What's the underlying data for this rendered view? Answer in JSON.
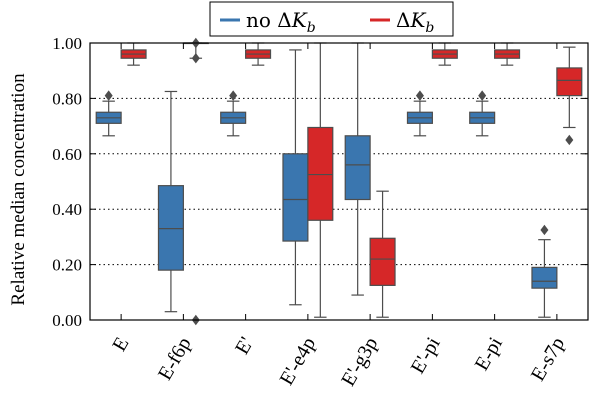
{
  "chart_data": {
    "type": "box",
    "ylabel": "Relative median concentration",
    "ylim": [
      0,
      1
    ],
    "yticks": [
      "0.00",
      "0.20",
      "0.40",
      "0.60",
      "0.80",
      "1.00"
    ],
    "grid": "horizontal dotted",
    "categories": [
      "E",
      "E-f6p",
      "E'",
      "E'-e4p",
      "E'-g3p",
      "E'-pi",
      "E-pi",
      "E-s7p"
    ],
    "legend": {
      "placement": "top-center",
      "entries": [
        {
          "prefix": "no ",
          "symbol": "ΔK",
          "subscript": "b"
        },
        {
          "prefix": "",
          "symbol": "ΔK",
          "subscript": "b"
        }
      ]
    },
    "series": [
      {
        "color": "#3a76af",
        "boxes": [
          {
            "whislo": 0.665,
            "q1": 0.71,
            "med": 0.73,
            "q3": 0.75,
            "whishi": 0.79,
            "fliers": [
              0.81
            ]
          },
          {
            "whislo": 0.03,
            "q1": 0.18,
            "med": 0.33,
            "q3": 0.485,
            "whishi": 0.825,
            "fliers": []
          },
          {
            "whislo": 0.665,
            "q1": 0.71,
            "med": 0.73,
            "q3": 0.75,
            "whishi": 0.79,
            "fliers": [
              0.81
            ]
          },
          {
            "whislo": 0.055,
            "q1": 0.285,
            "med": 0.435,
            "q3": 0.6,
            "whishi": 0.975,
            "fliers": []
          },
          {
            "whislo": 0.09,
            "q1": 0.435,
            "med": 0.56,
            "q3": 0.665,
            "whishi": 1.0,
            "fliers": []
          },
          {
            "whislo": 0.665,
            "q1": 0.71,
            "med": 0.73,
            "q3": 0.75,
            "whishi": 0.79,
            "fliers": [
              0.81
            ]
          },
          {
            "whislo": 0.665,
            "q1": 0.71,
            "med": 0.73,
            "q3": 0.75,
            "whishi": 0.79,
            "fliers": [
              0.81
            ]
          },
          {
            "whislo": 0.01,
            "q1": 0.115,
            "med": 0.14,
            "q3": 0.19,
            "whishi": 0.29,
            "fliers": [
              0.325
            ]
          }
        ]
      },
      {
        "color": "#d62728",
        "boxes": [
          {
            "whislo": 0.92,
            "q1": 0.945,
            "med": 0.96,
            "q3": 0.975,
            "whishi": 1.0,
            "fliers": []
          },
          {
            "whislo": 0.945,
            "q1": 1.0,
            "med": 1.0,
            "q3": 1.0,
            "whishi": 1.0,
            "fliers": [
              0.945,
              1.0,
              0.0
            ]
          },
          {
            "whislo": 0.92,
            "q1": 0.945,
            "med": 0.96,
            "q3": 0.975,
            "whishi": 1.0,
            "fliers": []
          },
          {
            "whislo": 0.01,
            "q1": 0.36,
            "med": 0.525,
            "q3": 0.695,
            "whishi": 1.0,
            "fliers": []
          },
          {
            "whislo": 0.01,
            "q1": 0.125,
            "med": 0.22,
            "q3": 0.295,
            "whishi": 0.465,
            "fliers": []
          },
          {
            "whislo": 0.92,
            "q1": 0.945,
            "med": 0.96,
            "q3": 0.975,
            "whishi": 1.0,
            "fliers": []
          },
          {
            "whislo": 0.92,
            "q1": 0.945,
            "med": 0.96,
            "q3": 0.975,
            "whishi": 1.0,
            "fliers": []
          },
          {
            "whislo": 0.695,
            "q1": 0.81,
            "med": 0.865,
            "q3": 0.91,
            "whishi": 0.985,
            "fliers": [
              0.65
            ]
          }
        ]
      }
    ]
  }
}
